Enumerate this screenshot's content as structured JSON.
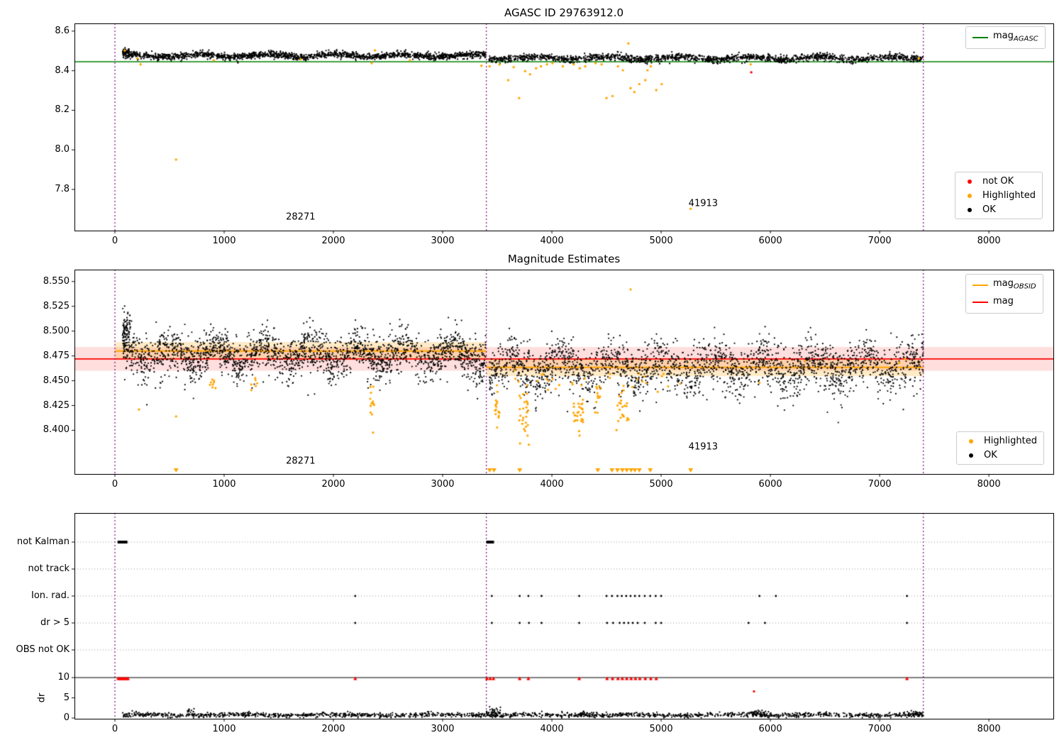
{
  "colors": {
    "ok": "#000000",
    "highlighted": "#ffa500",
    "not_ok": "#ff0000",
    "mag_agasc": "#008000",
    "mag": "#ff0000",
    "mag_obsid": "#ffa500",
    "divider": "#800080",
    "band_mag": "rgba(255,0,0,0.13)",
    "band_obsid": "rgba(255,165,0,0.22)",
    "grid": "#999999"
  },
  "chart_data": [
    {
      "id": "agasc-mag",
      "type": "scatter",
      "title": "AGASC ID 29763912.0",
      "xlim": [
        -370,
        8590
      ],
      "ylim": [
        7.592,
        8.639
      ],
      "xticks": [
        0,
        1000,
        2000,
        3000,
        4000,
        5000,
        6000,
        7000,
        8000
      ],
      "xtick_labels": [
        "0",
        "1000",
        "2000",
        "3000",
        "4000",
        "5000",
        "6000",
        "7000",
        "8000"
      ],
      "yticks": [
        8.6,
        8.4,
        8.2,
        8.0,
        7.8
      ],
      "ytick_labels": [
        "8.6",
        "8.4",
        "8.2",
        "8.0",
        "7.8"
      ],
      "ref_line": {
        "label_base": "mag",
        "label_sub": "AGASC",
        "value": 8.445
      },
      "dividers": [
        0,
        3400,
        7400
      ],
      "annotations": [
        {
          "text": "28271",
          "x": 1700,
          "y": 7.66
        },
        {
          "text": "41913",
          "x": 5385,
          "y": 7.73
        }
      ],
      "legend_points": [
        "not OK",
        "Highlighted",
        "OK"
      ],
      "series": {
        "ok_clusters": [
          {
            "x0": 70,
            "x1": 130,
            "n": 60,
            "base": 8.497,
            "sd": 0.006,
            "amp": 0,
            "period": 500,
            "phase": 0,
            "spike": 0
          },
          {
            "x0": 70,
            "x1": 3395,
            "n": 1600,
            "base": 8.476,
            "sd": 0.008,
            "amp": 0.007,
            "period": 620,
            "phase": 0,
            "spike": 0.02
          },
          {
            "x0": 3420,
            "x1": 7400,
            "n": 1600,
            "base": 8.464,
            "sd": 0.009,
            "amp": 0.007,
            "period": 650,
            "phase": 2,
            "spike": 0.03
          }
        ],
        "highlighted_points": [
          [
            90,
            8.502
          ],
          [
            205,
            8.462
          ],
          [
            235,
            8.432
          ],
          [
            560,
            7.951
          ],
          [
            905,
            8.452
          ],
          [
            1700,
            8.458
          ],
          [
            2350,
            8.438
          ],
          [
            2380,
            8.503
          ],
          [
            2700,
            8.452
          ],
          [
            3355,
            8.425
          ],
          [
            3430,
            8.422
          ],
          [
            3520,
            8.432
          ],
          [
            3600,
            8.352
          ],
          [
            3650,
            8.418
          ],
          [
            3700,
            8.262
          ],
          [
            3755,
            8.398
          ],
          [
            3800,
            8.382
          ],
          [
            3855,
            8.412
          ],
          [
            3900,
            8.422
          ],
          [
            3955,
            8.432
          ],
          [
            4005,
            8.438
          ],
          [
            4100,
            8.422
          ],
          [
            4200,
            8.432
          ],
          [
            4255,
            8.412
          ],
          [
            4305,
            8.422
          ],
          [
            4400,
            8.438
          ],
          [
            4455,
            8.432
          ],
          [
            4500,
            8.262
          ],
          [
            4555,
            8.272
          ],
          [
            4605,
            8.422
          ],
          [
            4650,
            8.402
          ],
          [
            4700,
            8.538
          ],
          [
            4720,
            8.312
          ],
          [
            4755,
            8.292
          ],
          [
            4800,
            8.332
          ],
          [
            4855,
            8.352
          ],
          [
            4875,
            8.402
          ],
          [
            4905,
            8.422
          ],
          [
            4955,
            8.302
          ],
          [
            5005,
            8.332
          ],
          [
            5270,
            7.702
          ],
          [
            5820,
            8.432
          ],
          [
            7360,
            8.462
          ]
        ],
        "notok_points": [
          [
            5825,
            8.392
          ]
        ]
      }
    },
    {
      "id": "magnitude-estimates",
      "type": "scatter",
      "title": "Magnitude Estimates",
      "xlim": [
        -370,
        8590
      ],
      "ylim": [
        8.356,
        8.562
      ],
      "xticks": [
        0,
        1000,
        2000,
        3000,
        4000,
        5000,
        6000,
        7000,
        8000
      ],
      "xtick_labels": [
        "0",
        "1000",
        "2000",
        "3000",
        "4000",
        "5000",
        "6000",
        "7000",
        "8000"
      ],
      "yticks": [
        8.55,
        8.525,
        8.5,
        8.475,
        8.45,
        8.425,
        8.4
      ],
      "ytick_labels": [
        "8.550",
        "8.525",
        "8.500",
        "8.475",
        "8.450",
        "8.425",
        "8.400"
      ],
      "mag": 8.472,
      "mag_band": 0.012,
      "obsid_segments": [
        {
          "x0": 0,
          "x1": 3400,
          "mag": 8.48
        },
        {
          "x0": 3400,
          "x1": 7400,
          "mag": 8.4635
        }
      ],
      "obsid_band": 0.009,
      "dividers": [
        0,
        3400,
        7400
      ],
      "annotations": [
        {
          "text": "28271",
          "x": 1700,
          "y": 8.369
        },
        {
          "text": "41913",
          "x": 5385,
          "y": 8.383
        }
      ],
      "legend_lines": [
        {
          "base": "mag",
          "sub": "OBSID"
        },
        {
          "base": "mag",
          "sub": ""
        }
      ],
      "legend_points": [
        "Highlighted",
        "OK"
      ],
      "series": {
        "ok_clusters": [
          {
            "x0": 70,
            "x1": 140,
            "n": 80,
            "base": 8.5,
            "sd": 0.009,
            "amp": 0,
            "period": 400,
            "phase": 0,
            "spike": 0
          },
          {
            "x0": 70,
            "x1": 3395,
            "n": 2200,
            "base": 8.477,
            "sd": 0.0105,
            "amp": 0.008,
            "period": 430,
            "phase": 0.5,
            "spike": 0.05
          },
          {
            "x0": 3420,
            "x1": 7400,
            "n": 2200,
            "base": 8.4645,
            "sd": 0.012,
            "amp": 0.008,
            "period": 460,
            "phase": 2.2,
            "spike": 0.06
          }
        ],
        "highlighted_clusters": [
          {
            "x0": 865,
            "x1": 925,
            "n": 8,
            "base": 8.447,
            "sd": 0.004
          },
          {
            "x0": 1245,
            "x1": 1305,
            "n": 6,
            "base": 8.447,
            "sd": 0.004
          },
          {
            "x0": 2330,
            "x1": 2375,
            "n": 14,
            "base": 8.428,
            "sd": 0.012
          },
          {
            "x0": 3480,
            "x1": 3525,
            "n": 16,
            "base": 8.425,
            "sd": 0.012
          },
          {
            "x0": 3700,
            "x1": 3790,
            "n": 28,
            "base": 8.418,
            "sd": 0.013
          },
          {
            "x0": 4195,
            "x1": 4285,
            "n": 28,
            "base": 8.418,
            "sd": 0.013
          },
          {
            "x0": 4395,
            "x1": 4455,
            "n": 12,
            "base": 8.432,
            "sd": 0.009
          },
          {
            "x0": 4590,
            "x1": 4705,
            "n": 22,
            "base": 8.42,
            "sd": 0.012
          },
          {
            "x0": 3550,
            "x1": 5300,
            "n": 30,
            "base": 8.45,
            "sd": 0.006
          }
        ],
        "highlighted_points": [
          [
            220,
            8.421
          ],
          [
            4720,
            8.542
          ],
          [
            560,
            8.414
          ],
          [
            5900,
            8.448
          ],
          [
            6320,
            8.47
          ],
          [
            7180,
            8.468
          ],
          [
            7230,
            8.472
          ]
        ],
        "clipped_x": [
          560,
          3430,
          3470,
          3705,
          4420,
          4550,
          4600,
          4645,
          4685,
          4725,
          4760,
          4800,
          4900,
          5270
        ]
      }
    },
    {
      "id": "flags-and-dr",
      "type": "scatter",
      "title": "",
      "xlim": [
        -370,
        8590
      ],
      "xticks": [
        0,
        1000,
        2000,
        3000,
        4000,
        5000,
        6000,
        7000,
        8000
      ],
      "xtick_labels": [
        "0",
        "1000",
        "2000",
        "3000",
        "4000",
        "5000",
        "6000",
        "7000",
        "8000"
      ],
      "rows": [
        "not Kalman",
        "not track",
        "Ion. rad.",
        "dr > 5",
        "OBS not OK"
      ],
      "dr_label": "dr",
      "dr_ticks": [
        10,
        5,
        0
      ],
      "dr_tick_labels": [
        "10",
        "5",
        "0"
      ],
      "dr_limit_line": 10,
      "dividers": [
        0,
        3400,
        7400
      ],
      "series": {
        "not_kalman_ranges": [
          [
            25,
            115
          ],
          [
            3400,
            3470
          ]
        ],
        "not_track_x": [],
        "ion_rad_x": [
          2200,
          3450,
          3705,
          3785,
          3905,
          4250,
          4500,
          4550,
          4600,
          4640,
          4680,
          4720,
          4760,
          4800,
          4850,
          4900,
          4950,
          5000,
          5900,
          6050,
          7250
        ],
        "dr5_x": [
          2200,
          3450,
          3705,
          3790,
          3905,
          4250,
          4505,
          4560,
          4620,
          4660,
          4700,
          4740,
          4785,
          4850,
          4950,
          5000,
          5800,
          5950,
          7250
        ],
        "obs_not_ok_x": [],
        "dr_red_points": [
          [
            30,
            10
          ],
          [
            45,
            10
          ],
          [
            60,
            10
          ],
          [
            75,
            10
          ],
          [
            90,
            10
          ],
          [
            105,
            10
          ],
          [
            120,
            10
          ],
          [
            2200,
            10
          ],
          [
            3405,
            10
          ],
          [
            3435,
            10
          ],
          [
            3465,
            10
          ],
          [
            3705,
            10
          ],
          [
            3785,
            10
          ],
          [
            4250,
            10
          ],
          [
            4505,
            10
          ],
          [
            4555,
            10
          ],
          [
            4605,
            10
          ],
          [
            4645,
            10
          ],
          [
            4685,
            10
          ],
          [
            4725,
            10
          ],
          [
            4765,
            10
          ],
          [
            4805,
            10
          ],
          [
            4855,
            10
          ],
          [
            4905,
            10
          ],
          [
            4955,
            10
          ],
          [
            7250,
            10
          ],
          [
            5850,
            6.6
          ]
        ],
        "dr_clusters": [
          {
            "x0": 70,
            "x1": 7400,
            "n": 1600,
            "base": 0.75,
            "sd": 0.28,
            "amp": 0.12,
            "period": 900,
            "phase": 0,
            "spike": 0
          },
          {
            "x0": 660,
            "x1": 745,
            "n": 22,
            "base": 1.5,
            "sd": 0.5
          },
          {
            "x0": 3400,
            "x1": 3530,
            "n": 40,
            "base": 1.5,
            "sd": 0.55
          },
          {
            "x0": 4250,
            "x1": 4420,
            "n": 25,
            "base": 1.1,
            "sd": 0.35
          },
          {
            "x0": 5820,
            "x1": 5990,
            "n": 35,
            "base": 1.15,
            "sd": 0.4
          },
          {
            "x0": 7250,
            "x1": 7390,
            "n": 25,
            "base": 1.0,
            "sd": 0.35
          }
        ]
      }
    }
  ]
}
